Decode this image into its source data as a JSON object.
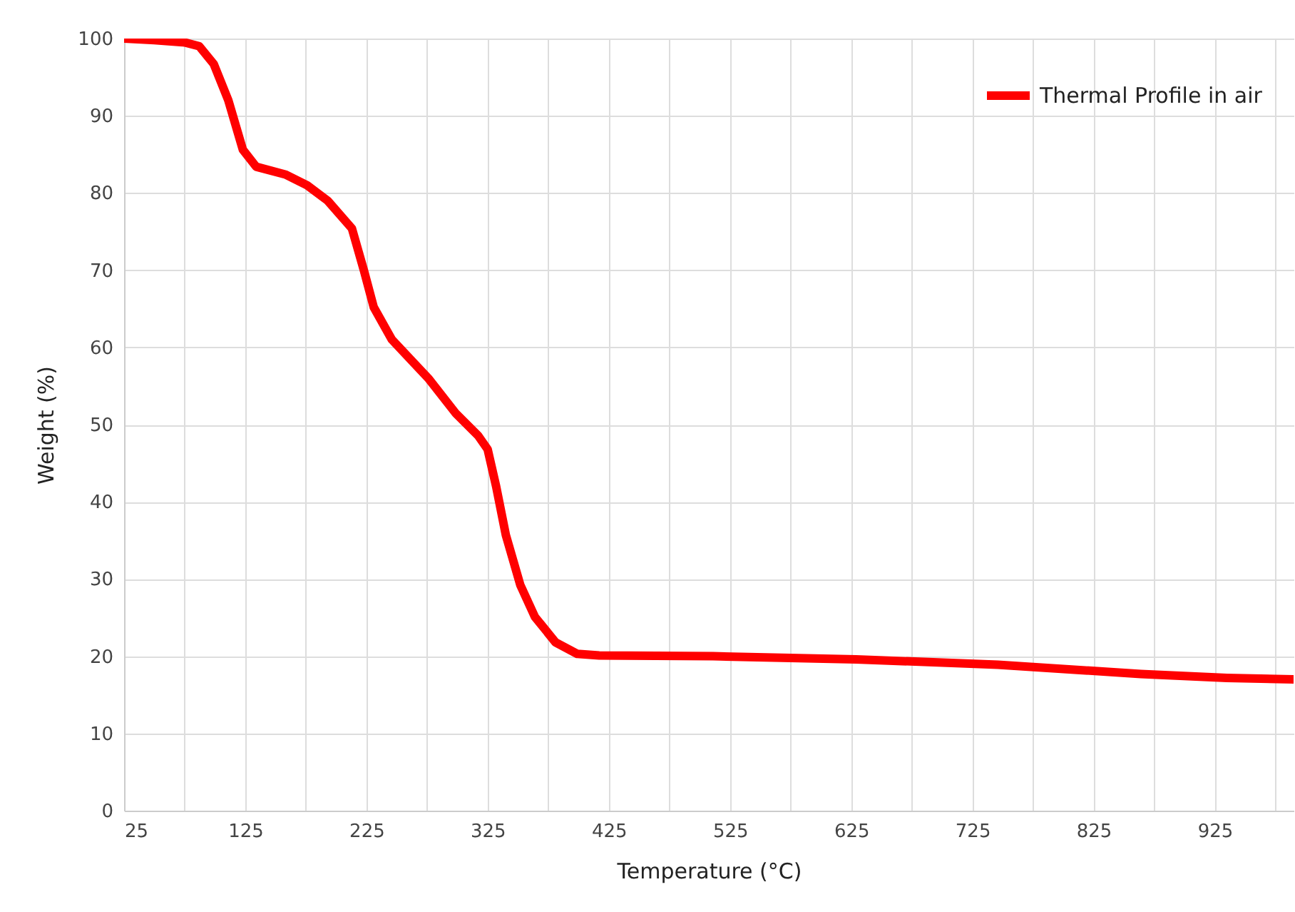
{
  "chart_data": {
    "type": "line",
    "xlabel": "Temperature (°C)",
    "ylabel": "Weight (%)",
    "xlim": [
      25,
      990
    ],
    "ylim": [
      0,
      100
    ],
    "xticks": [
      25,
      {
        "value": 75,
        "label": null
      },
      125,
      {
        "value": 175,
        "label": null
      },
      225,
      {
        "value": 275,
        "label": null
      },
      325,
      {
        "value": 375,
        "label": null
      },
      425,
      {
        "value": 475,
        "label": null
      },
      525,
      {
        "value": 575,
        "label": null
      },
      625,
      {
        "value": 675,
        "label": null
      },
      725,
      {
        "value": 775,
        "label": null
      },
      825,
      {
        "value": 875,
        "label": null
      },
      925,
      {
        "value": 975,
        "label": null
      }
    ],
    "yticks": [
      0,
      10,
      20,
      30,
      40,
      50,
      60,
      70,
      80,
      90,
      100
    ],
    "grid": true,
    "legend": "top right",
    "marker": "none",
    "line_style": "solid",
    "series": [
      {
        "name": "Thermal Profile in air",
        "color": "#ff0000",
        "x": [
          25,
          50,
          75,
          87,
          99,
          111,
          123,
          134,
          158,
          176,
          193,
          213,
          223,
          231,
          246,
          276,
          299,
          317,
          325,
          332,
          340,
          352,
          364,
          381,
          399,
          417,
          511,
          629,
          746,
          864,
          935,
          990
        ],
        "values": [
          100,
          99.8,
          99.5,
          99,
          96.7,
          92,
          85.6,
          83.4,
          82.4,
          81,
          79,
          75.4,
          69.9,
          65.2,
          61,
          56,
          51.4,
          48.6,
          46.8,
          42,
          35.7,
          29.2,
          25.1,
          21.8,
          20.3,
          20.1,
          20,
          19.6,
          18.9,
          17.7,
          17.2,
          17
        ]
      }
    ]
  }
}
